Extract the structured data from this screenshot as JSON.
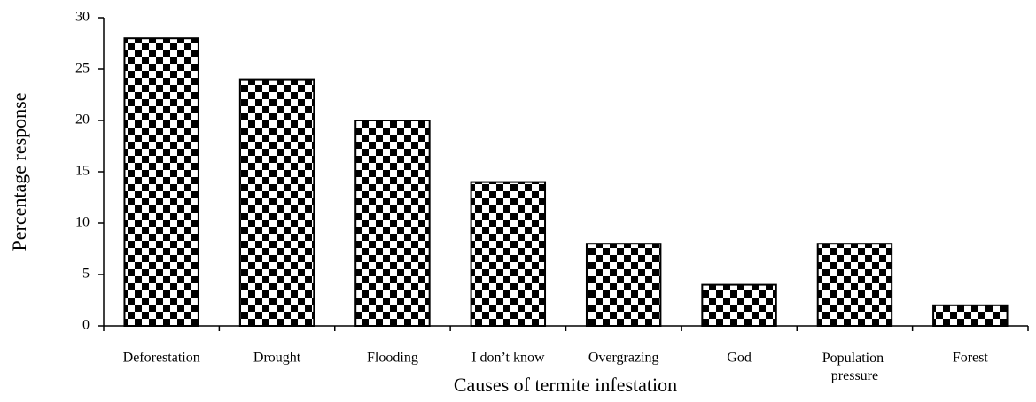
{
  "chart_data": {
    "type": "bar",
    "categories": [
      "Deforestation",
      "Drought",
      "Flooding",
      "I don’t know",
      "Overgrazing",
      "God",
      "Population pressure",
      "Forest"
    ],
    "values": [
      28,
      24,
      20,
      14,
      8,
      4,
      8,
      2
    ],
    "color": "#000000",
    "ylim": [
      0,
      30
    ],
    "yticks": [
      0,
      5,
      10,
      15,
      20,
      25,
      30
    ],
    "xlabel": "Causes of termite infestation",
    "ylabel": "Percentage response"
  }
}
